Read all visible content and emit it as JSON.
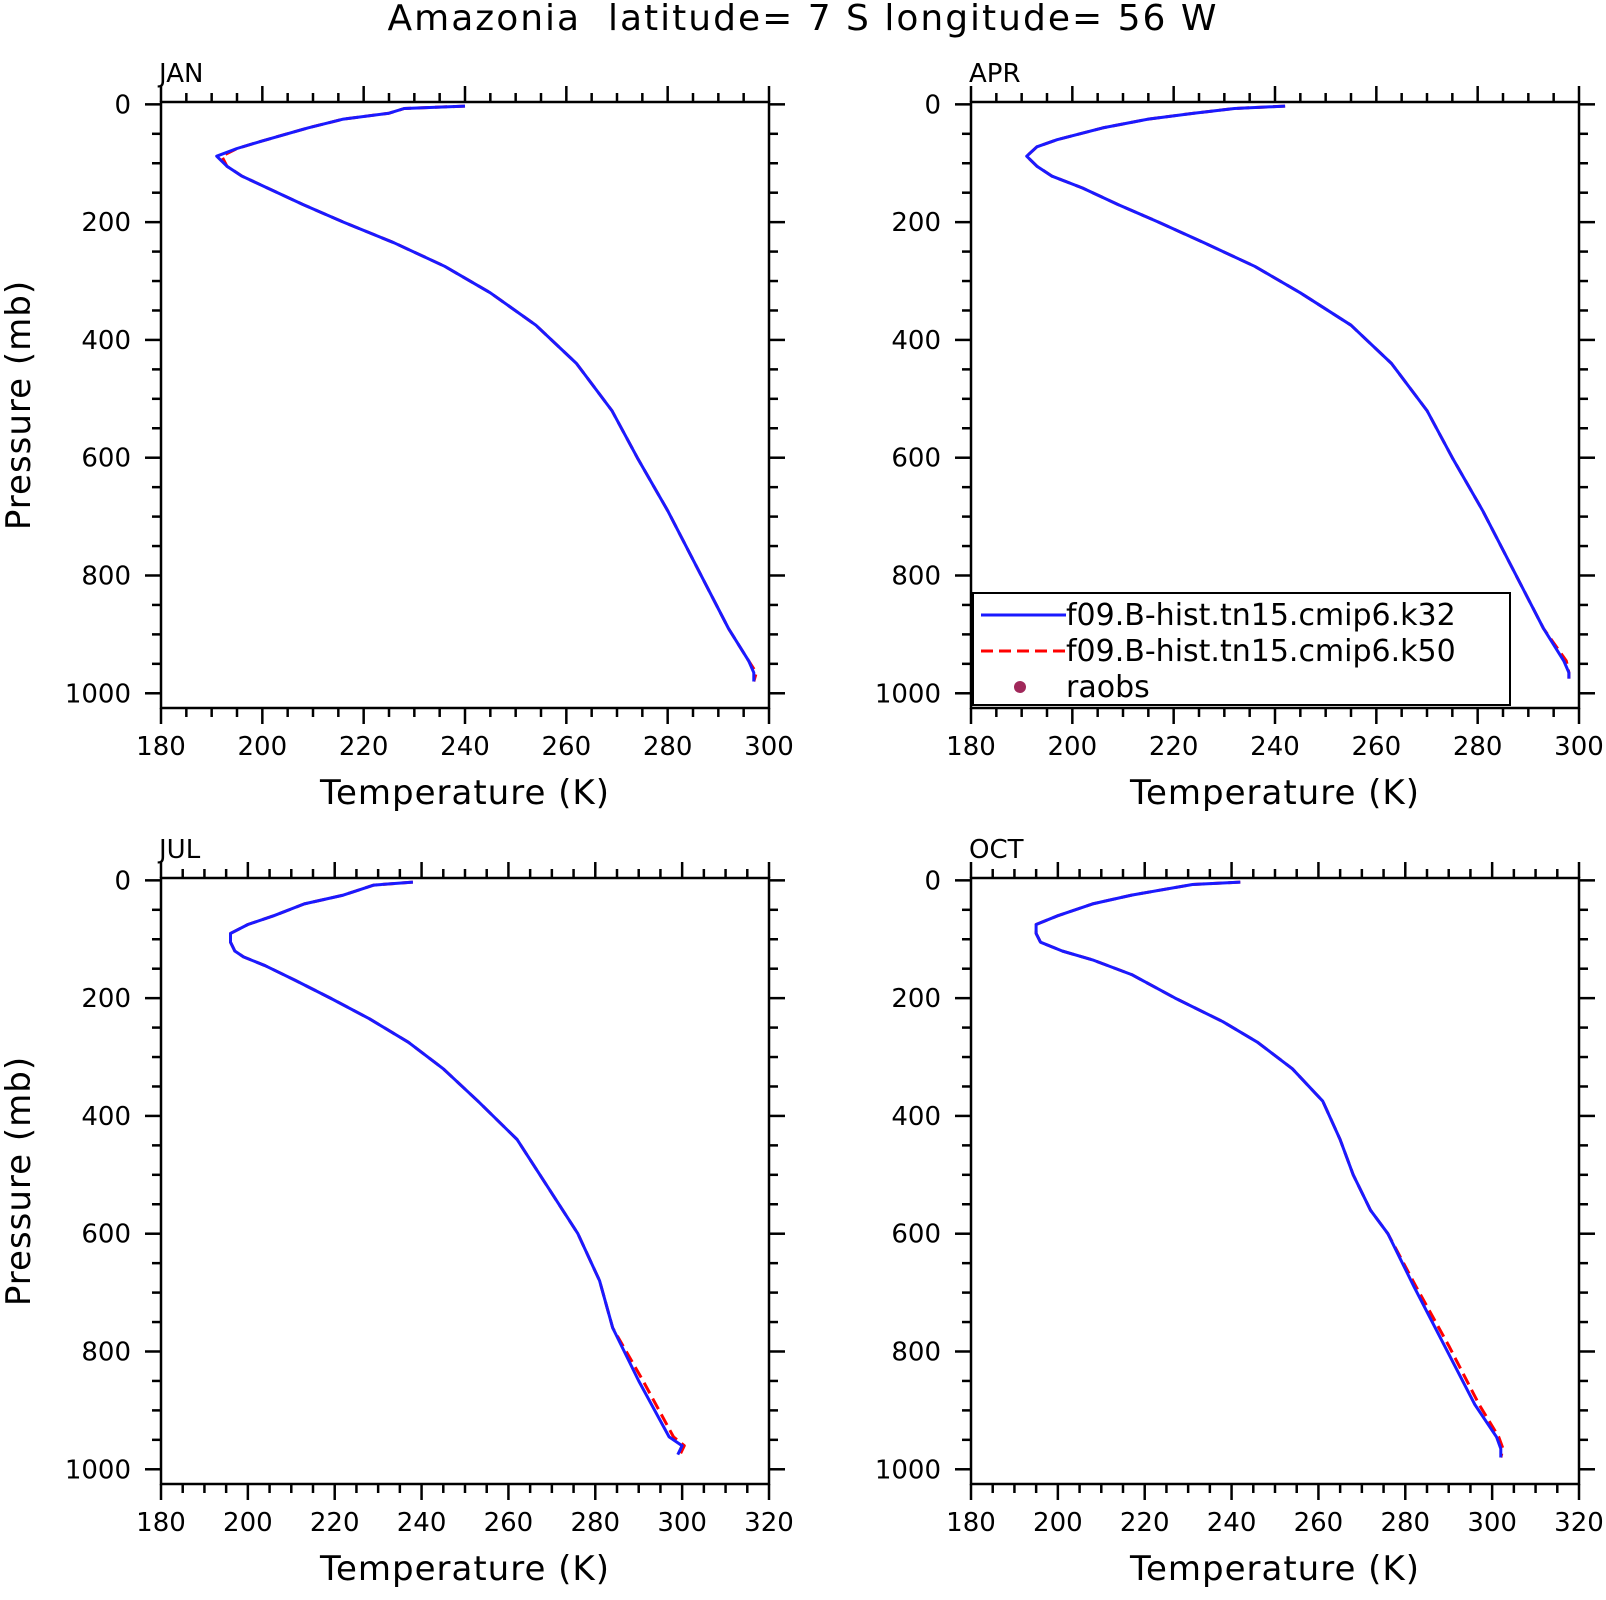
{
  "title": "Amazonia  latitude= 7 S longitude= 56 W",
  "colors": {
    "k32": "#1a1aff",
    "k50": "#ff0000",
    "raobs": "#a0285a"
  },
  "legend": {
    "location": "bottom-right of APR panel",
    "entries": [
      {
        "label": "f09.B-hist.tn15.cmip6.k32",
        "style": "solid",
        "color": "#1a1aff"
      },
      {
        "label": "f09.B-hist.tn15.cmip6.k50",
        "style": "dashed",
        "color": "#ff0000"
      },
      {
        "label": "raobs",
        "style": "marker",
        "color": "#a0285a"
      }
    ]
  },
  "chart_data": [
    {
      "type": "line",
      "panel": "JAN",
      "xlabel": "Temperature (K)",
      "ylabel": "Pressure (mb)",
      "xlim": [
        180,
        300
      ],
      "ylim": [
        1000,
        0
      ],
      "xticks": [
        180,
        200,
        220,
        240,
        260,
        280,
        300
      ],
      "yticks": [
        0,
        200,
        400,
        600,
        800,
        1000
      ],
      "series": [
        {
          "name": "f09.B-hist.tn15.cmip6.k32",
          "x": [
            240,
            228,
            225,
            216,
            209,
            200,
            195,
            191,
            193,
            196,
            201,
            208,
            216,
            226,
            236,
            245,
            254,
            262,
            269,
            274,
            280,
            286,
            292,
            296,
            297,
            297
          ],
          "y": [
            3,
            7,
            15,
            25,
            40,
            62,
            75,
            88,
            105,
            122,
            142,
            170,
            200,
            235,
            275,
            320,
            375,
            440,
            520,
            600,
            690,
            790,
            890,
            945,
            965,
            980
          ]
        },
        {
          "name": "f09.B-hist.tn15.cmip6.k50",
          "x": [
            240,
            228,
            225,
            216,
            209,
            200,
            195,
            192,
            193,
            196,
            201,
            208,
            216,
            226,
            236,
            245,
            254,
            262,
            269,
            274,
            280,
            286,
            292,
            296,
            297.5,
            297
          ],
          "y": [
            3,
            7,
            15,
            25,
            40,
            62,
            75,
            88,
            105,
            122,
            142,
            170,
            200,
            235,
            275,
            320,
            375,
            440,
            520,
            600,
            690,
            790,
            890,
            945,
            965,
            980
          ]
        }
      ]
    },
    {
      "type": "line",
      "panel": "APR",
      "xlabel": "Temperature (K)",
      "ylabel": "",
      "xlim": [
        180,
        300
      ],
      "ylim": [
        1000,
        0
      ],
      "xticks": [
        180,
        200,
        220,
        240,
        260,
        280,
        300
      ],
      "yticks": [
        0,
        200,
        400,
        600,
        800,
        1000
      ],
      "series": [
        {
          "name": "f09.B-hist.tn15.cmip6.k32",
          "x": [
            242,
            232,
            224,
            215,
            206,
            197,
            193,
            191,
            193,
            196,
            202,
            209,
            217,
            226,
            236,
            245,
            255,
            263,
            270,
            275,
            281,
            287,
            293,
            297,
            298,
            298
          ],
          "y": [
            3,
            7,
            15,
            25,
            40,
            60,
            72,
            88,
            105,
            122,
            142,
            170,
            200,
            235,
            275,
            320,
            375,
            440,
            520,
            600,
            690,
            790,
            890,
            945,
            965,
            975
          ]
        },
        {
          "name": "f09.B-hist.tn15.cmip6.k50",
          "x": [
            242,
            232,
            224,
            215,
            206,
            197,
            193,
            191,
            193,
            196,
            202,
            209,
            217,
            226,
            236,
            245,
            255,
            263,
            270,
            275,
            281,
            287,
            293,
            297.5,
            298,
            298
          ],
          "y": [
            3,
            7,
            15,
            25,
            40,
            60,
            72,
            88,
            105,
            122,
            142,
            170,
            200,
            235,
            275,
            320,
            375,
            440,
            520,
            600,
            690,
            790,
            890,
            945,
            965,
            975
          ]
        }
      ]
    },
    {
      "type": "line",
      "panel": "JUL",
      "xlabel": "Temperature (K)",
      "ylabel": "Pressure (mb)",
      "xlim": [
        180,
        320
      ],
      "ylim": [
        1000,
        0
      ],
      "xticks": [
        180,
        200,
        220,
        240,
        260,
        280,
        300,
        320
      ],
      "yticks": [
        0,
        200,
        400,
        600,
        800,
        1000
      ],
      "series": [
        {
          "name": "f09.B-hist.tn15.cmip6.k32",
          "x": [
            238,
            229,
            222,
            213,
            206,
            200,
            196,
            196,
            197,
            199,
            204,
            211,
            219,
            228,
            237,
            245,
            253,
            262,
            269,
            276,
            281,
            284,
            290,
            297,
            300,
            299
          ],
          "y": [
            3,
            8,
            25,
            40,
            60,
            75,
            90,
            105,
            120,
            130,
            145,
            170,
            200,
            235,
            275,
            320,
            375,
            440,
            520,
            600,
            680,
            760,
            850,
            945,
            960,
            975
          ]
        },
        {
          "name": "f09.B-hist.tn15.cmip6.k50",
          "x": [
            238,
            229,
            222,
            213,
            206,
            200,
            196,
            196,
            197,
            199,
            204,
            211,
            219,
            228,
            237,
            245,
            253,
            262,
            269,
            276,
            281,
            284,
            291,
            298,
            300.5,
            299.5
          ],
          "y": [
            3,
            8,
            25,
            40,
            60,
            75,
            90,
            105,
            120,
            130,
            145,
            170,
            200,
            235,
            275,
            320,
            375,
            440,
            520,
            600,
            680,
            760,
            850,
            945,
            960,
            975
          ]
        }
      ]
    },
    {
      "type": "line",
      "panel": "OCT",
      "xlabel": "Temperature (K)",
      "ylabel": "",
      "xlim": [
        180,
        320
      ],
      "ylim": [
        1000,
        0
      ],
      "xticks": [
        180,
        200,
        220,
        240,
        260,
        280,
        300,
        320
      ],
      "yticks": [
        0,
        200,
        400,
        600,
        800,
        1000
      ],
      "series": [
        {
          "name": "f09.B-hist.tn15.cmip6.k32",
          "x": [
            242,
            231,
            217,
            208,
            200,
            195,
            195,
            196,
            201,
            208,
            217,
            227,
            238,
            246,
            254,
            261,
            265,
            268,
            272,
            276,
            282,
            289,
            296,
            301,
            302,
            302
          ],
          "y": [
            3,
            7,
            25,
            40,
            60,
            75,
            90,
            105,
            120,
            135,
            160,
            200,
            240,
            275,
            320,
            375,
            440,
            500,
            560,
            600,
            690,
            790,
            890,
            945,
            965,
            980
          ]
        },
        {
          "name": "f09.B-hist.tn15.cmip6.k50",
          "x": [
            242,
            231,
            217,
            208,
            200,
            195,
            195,
            196,
            201,
            208,
            217,
            227,
            238,
            246,
            254,
            261,
            265,
            268,
            272,
            276,
            282.5,
            290,
            297,
            301.5,
            302.5,
            302
          ],
          "y": [
            3,
            7,
            25,
            40,
            60,
            75,
            90,
            105,
            120,
            135,
            160,
            200,
            240,
            275,
            320,
            375,
            440,
            500,
            560,
            600,
            690,
            790,
            890,
            945,
            965,
            980
          ]
        }
      ]
    }
  ]
}
